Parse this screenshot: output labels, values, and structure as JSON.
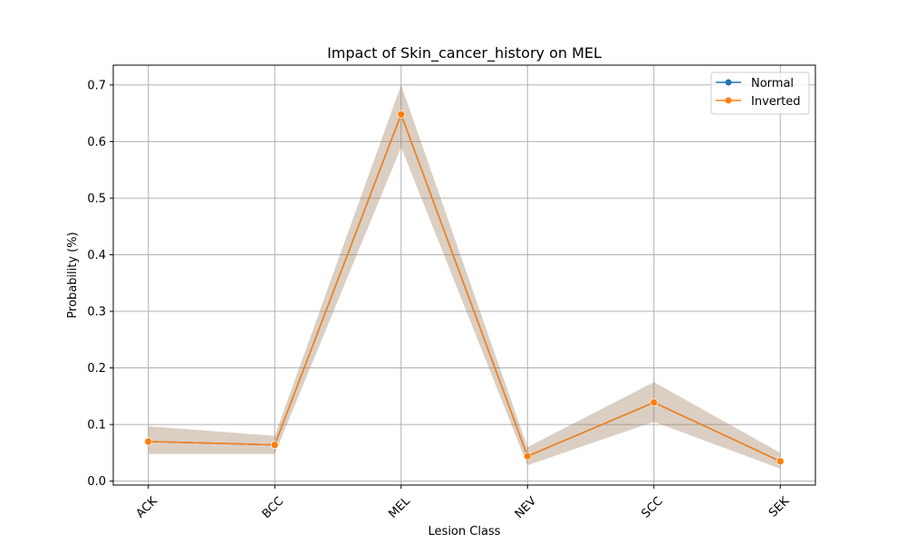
{
  "chart_data": {
    "type": "line",
    "title": "Impact of Skin_cancer_history on MEL",
    "xlabel": "Lesion Class",
    "ylabel": "Probability (%)",
    "categories": [
      "ACK",
      "BCC",
      "MEL",
      "NEV",
      "SCC",
      "SEK"
    ],
    "ylim": [
      -0.007,
      0.735
    ],
    "yticks": [
      0.0,
      0.1,
      0.2,
      0.3,
      0.4,
      0.5,
      0.6,
      0.7
    ],
    "ytick_labels": [
      "0.0",
      "0.1",
      "0.2",
      "0.3",
      "0.4",
      "0.5",
      "0.6",
      "0.7"
    ],
    "grid": true,
    "legend_position": "top-right",
    "series": [
      {
        "name": "Normal",
        "color": "#1f77b4",
        "values": [
          0.07,
          0.064,
          0.648,
          0.044,
          0.139,
          0.035
        ],
        "lower": [
          0.048,
          0.048,
          0.59,
          0.028,
          0.105,
          0.022
        ],
        "upper": [
          0.097,
          0.08,
          0.7,
          0.06,
          0.175,
          0.05
        ]
      },
      {
        "name": "Inverted",
        "color": "#ff7f0e",
        "values": [
          0.07,
          0.064,
          0.648,
          0.044,
          0.139,
          0.035
        ],
        "lower": [
          0.048,
          0.048,
          0.59,
          0.028,
          0.105,
          0.022
        ],
        "upper": [
          0.097,
          0.08,
          0.7,
          0.06,
          0.175,
          0.05
        ]
      }
    ]
  }
}
